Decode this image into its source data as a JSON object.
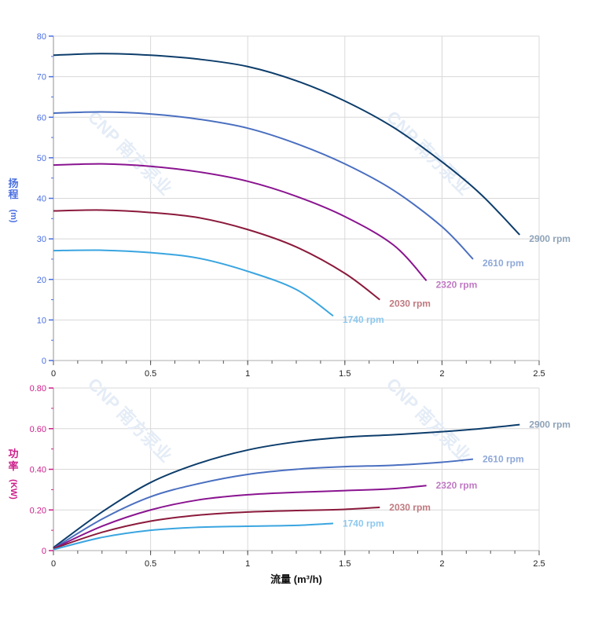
{
  "watermark": "CNP 南方泵业",
  "colors": {
    "head_axis": "#4a6fe0",
    "power_axis": "#cc1f8a",
    "grid": "#d8d8d8"
  },
  "chart_data": [
    {
      "type": "line",
      "title": "",
      "ylabel": [
        "扬",
        "程",
        "(m)"
      ],
      "xlim": [
        0,
        2.5
      ],
      "ylim": [
        0,
        80
      ],
      "xticks": [
        0,
        0.5,
        1,
        1.5,
        2,
        2.5
      ],
      "xtick_labels": [
        "0",
        "0.5",
        "1",
        "1.5",
        "2",
        "2.5"
      ],
      "yticks": [
        0,
        10,
        20,
        30,
        40,
        50,
        60,
        70,
        80
      ],
      "ytick_labels": [
        "0",
        "10",
        "20",
        "30",
        "40",
        "50",
        "60",
        "70",
        "80"
      ],
      "grid": true,
      "series": [
        {
          "name": "2900 rpm",
          "color": "#0d3d6b",
          "label_color": "#8fa3b8",
          "x": [
            0,
            0.25,
            0.5,
            0.75,
            1,
            1.25,
            1.5,
            1.75,
            2,
            2.2,
            2.4
          ],
          "y": [
            75.3,
            75.7,
            75.3,
            74.3,
            72.5,
            69,
            64,
            57.5,
            49,
            41,
            31
          ]
        },
        {
          "name": "2610 rpm",
          "color": "#4a6fc0",
          "label_color": "#8fa8d8",
          "x": [
            0,
            0.25,
            0.5,
            0.75,
            1,
            1.25,
            1.5,
            1.75,
            2,
            2.16
          ],
          "y": [
            61,
            61.3,
            60.8,
            59.5,
            57.3,
            53.5,
            48.5,
            42,
            33,
            25
          ]
        },
        {
          "name": "2320 rpm",
          "color": "#8a1490",
          "label_color": "#c07ac4",
          "x": [
            0,
            0.25,
            0.5,
            0.75,
            1,
            1.25,
            1.5,
            1.75,
            1.92
          ],
          "y": [
            48.2,
            48.5,
            47.9,
            46.5,
            44.2,
            40.5,
            35.5,
            28.5,
            19.7
          ]
        },
        {
          "name": "2030 rpm",
          "color": "#8b1a3c",
          "label_color": "#c07a80",
          "x": [
            0,
            0.25,
            0.5,
            0.75,
            1,
            1.25,
            1.5,
            1.68
          ],
          "y": [
            36.9,
            37.1,
            36.5,
            35.2,
            32.3,
            28,
            21.5,
            15
          ]
        },
        {
          "name": "1740 rpm",
          "color": "#3aa5e0",
          "label_color": "#8ec8ee",
          "x": [
            0,
            0.25,
            0.5,
            0.75,
            1,
            1.25,
            1.44
          ],
          "y": [
            27.1,
            27.2,
            26.6,
            25.2,
            22,
            17.5,
            11
          ]
        }
      ]
    },
    {
      "type": "line",
      "title": "",
      "xlabel": "流量 (m³/h)",
      "ylabel": [
        "功",
        "率",
        "(KW)"
      ],
      "xlim": [
        0,
        2.5
      ],
      "ylim": [
        0,
        0.8
      ],
      "xticks": [
        0,
        0.5,
        1,
        1.5,
        2,
        2.5
      ],
      "xtick_labels": [
        "0",
        "0.5",
        "1",
        "1.5",
        "2",
        "2.5"
      ],
      "yticks": [
        0,
        0.2,
        0.4,
        0.6,
        0.8
      ],
      "ytick_labels": [
        "0",
        "0.20",
        "0.40",
        "0.60",
        "0.80"
      ],
      "grid": true,
      "series": [
        {
          "name": "2900 rpm",
          "color": "#0d3d6b",
          "label_color": "#8fa3b8",
          "x": [
            0,
            0.25,
            0.5,
            0.75,
            1,
            1.25,
            1.5,
            1.75,
            2,
            2.2,
            2.4
          ],
          "y": [
            0.015,
            0.19,
            0.335,
            0.43,
            0.495,
            0.535,
            0.558,
            0.57,
            0.585,
            0.6,
            0.62
          ]
        },
        {
          "name": "2610 rpm",
          "color": "#4a6fc0",
          "label_color": "#8fa8d8",
          "x": [
            0,
            0.25,
            0.5,
            0.75,
            1,
            1.25,
            1.5,
            1.75,
            2,
            2.16
          ],
          "y": [
            0.01,
            0.155,
            0.265,
            0.33,
            0.375,
            0.4,
            0.413,
            0.42,
            0.435,
            0.45
          ]
        },
        {
          "name": "2320 rpm",
          "color": "#8a1490",
          "label_color": "#c07ac4",
          "x": [
            0,
            0.25,
            0.5,
            0.75,
            1,
            1.25,
            1.5,
            1.75,
            1.92
          ],
          "y": [
            0.01,
            0.12,
            0.2,
            0.25,
            0.275,
            0.287,
            0.295,
            0.305,
            0.32
          ]
        },
        {
          "name": "2030 rpm",
          "color": "#8b1a3c",
          "label_color": "#c07a80",
          "x": [
            0,
            0.25,
            0.5,
            0.75,
            1,
            1.25,
            1.5,
            1.68
          ],
          "y": [
            0.01,
            0.09,
            0.145,
            0.175,
            0.19,
            0.197,
            0.203,
            0.213
          ]
        },
        {
          "name": "1740 rpm",
          "color": "#3aa5e0",
          "label_color": "#8ec8ee",
          "x": [
            0,
            0.25,
            0.5,
            0.75,
            1,
            1.25,
            1.44
          ],
          "y": [
            0.005,
            0.065,
            0.1,
            0.115,
            0.12,
            0.124,
            0.134
          ]
        }
      ]
    }
  ]
}
